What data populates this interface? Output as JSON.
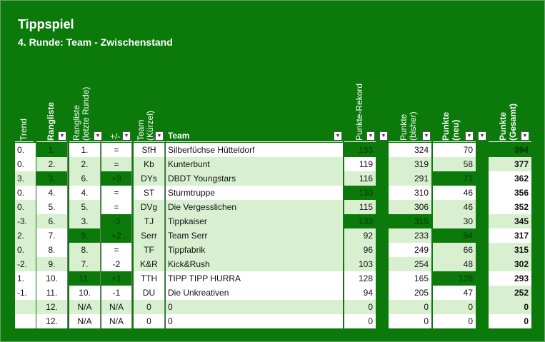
{
  "title": "Tippspiel",
  "subtitle": "4. Runde: Team - Zwischenstand",
  "headers": {
    "trend": "Trend",
    "rangliste": "Rangliste",
    "rangliste_letzte_1": "Rangliste",
    "rangliste_letzte_2": "(letzte Runde)",
    "plusminus": "+/-",
    "team_kurz_1": "Team",
    "team_kurz_2": "(Kürzel)",
    "team": "Team",
    "punkte_rekord": "Punkte-Rekord",
    "punkte_bisher_1": "Punkte",
    "punkte_bisher_2": "(bisher)",
    "punkte_neu_1": "Punkte",
    "punkte_neu_2": "(neu)",
    "punkte_gesamt_1": "Punkte",
    "punkte_gesamt_2": "(Gesamt)",
    "dropdown_glyph": "▼"
  },
  "rows": [
    {
      "trend": "0.",
      "rank": "1.",
      "prev": "1.",
      "pm": "=",
      "short": "SfH",
      "team": "Silberfüchse Hütteldorf",
      "rekord": "133",
      "bisher": "324",
      "neu": "70",
      "gesamt": "394"
    },
    {
      "trend": "0.",
      "rank": "2.",
      "prev": "2.",
      "pm": "=",
      "short": "Kb",
      "team": "Kunterbunt",
      "rekord": "119",
      "bisher": "319",
      "neu": "58",
      "gesamt": "377"
    },
    {
      "trend": "3.",
      "rank": "3.",
      "prev": "6.",
      "pm": "+3",
      "short": "DYs",
      "team": "DBDT Youngstars",
      "rekord": "116",
      "bisher": "291",
      "neu": "71",
      "gesamt": "362"
    },
    {
      "trend": "0.",
      "rank": "4.",
      "prev": "4.",
      "pm": "=",
      "short": "ST",
      "team": "Sturmtruppe",
      "rekord": "130",
      "bisher": "310",
      "neu": "46",
      "gesamt": "356"
    },
    {
      "trend": "0.",
      "rank": "5.",
      "prev": "5.",
      "pm": "=",
      "short": "DVg",
      "team": "Die Vergesslichen",
      "rekord": "115",
      "bisher": "306",
      "neu": "46",
      "gesamt": "352"
    },
    {
      "trend": "-3.",
      "rank": "6.",
      "prev": "3.",
      "pm": "-3",
      "short": "TJ",
      "team": "Tippkaiser",
      "rekord": "133",
      "bisher": "315",
      "neu": "30",
      "gesamt": "345"
    },
    {
      "trend": "2.",
      "rank": "7.",
      "prev": "9.",
      "pm": "+2",
      "short": "Serr",
      "team": "Team Serr",
      "rekord": "92",
      "bisher": "233",
      "neu": "84",
      "gesamt": "317"
    },
    {
      "trend": "0.",
      "rank": "8.",
      "prev": "8.",
      "pm": "=",
      "short": "TF",
      "team": "Tippfabrik",
      "rekord": "96",
      "bisher": "249",
      "neu": "66",
      "gesamt": "315"
    },
    {
      "trend": "-2.",
      "rank": "9.",
      "prev": "7.",
      "pm": "-2",
      "short": "K&R",
      "team": "Kick&Rush",
      "rekord": "103",
      "bisher": "254",
      "neu": "48",
      "gesamt": "302"
    },
    {
      "trend": "1.",
      "rank": "10.",
      "prev": "11.",
      "pm": "+1",
      "short": "TTH",
      "team": "TIPP TIPP HURRA",
      "rekord": "128",
      "bisher": "165",
      "neu": "128",
      "gesamt": "293"
    },
    {
      "trend": "-1.",
      "rank": "11.",
      "prev": "10.",
      "pm": "-1",
      "short": "DU",
      "team": "Die Unkreativen",
      "rekord": "94",
      "bisher": "205",
      "neu": "47",
      "gesamt": "252"
    },
    {
      "trend": "",
      "rank": "12.",
      "prev": "N/A",
      "pm": "N/A",
      "short": "0",
      "team": "0",
      "rekord": "0",
      "bisher": "0",
      "neu": "0",
      "gesamt": "0"
    },
    {
      "trend": "",
      "rank": "12.",
      "prev": "N/A",
      "pm": "N/A",
      "short": "0",
      "team": "0",
      "rekord": "0",
      "bisher": "0",
      "neu": "0",
      "gesamt": "0"
    }
  ]
}
